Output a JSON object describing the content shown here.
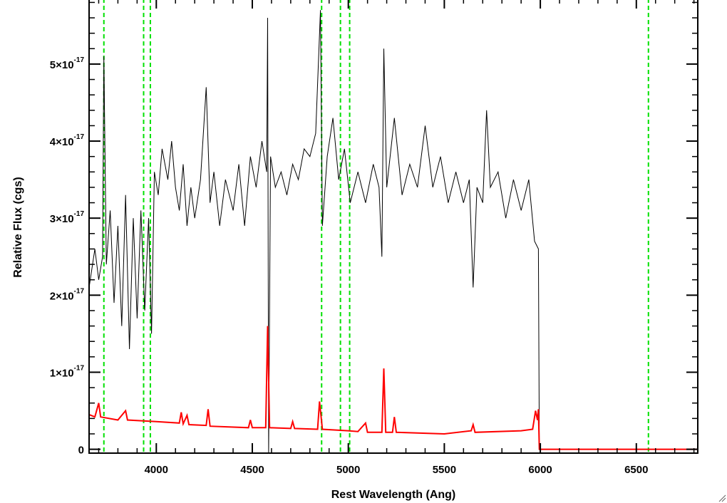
{
  "chart_data": {
    "type": "line",
    "title": "",
    "xlabel": "Rest Wavelength (Ang)",
    "ylabel": "Relative Flux (cgs)",
    "xlim": [
      3650,
      6820
    ],
    "ylim": [
      -5e-19,
      5.85e-17
    ],
    "x_ticks": [
      {
        "value": 4000,
        "label": "4000"
      },
      {
        "value": 4500,
        "label": "4500"
      },
      {
        "value": 5000,
        "label": "5000"
      },
      {
        "value": 5500,
        "label": "5500"
      },
      {
        "value": 6000,
        "label": "6000"
      },
      {
        "value": 6500,
        "label": "6500"
      }
    ],
    "y_ticks": [
      {
        "value": 0,
        "label": "0",
        "exp": ""
      },
      {
        "value": 1e-17,
        "label": "1×10",
        "exp": "-17"
      },
      {
        "value": 2e-17,
        "label": "2×10",
        "exp": "-17"
      },
      {
        "value": 3e-17,
        "label": "3×10",
        "exp": "-17"
      },
      {
        "value": 4e-17,
        "label": "4×10",
        "exp": "-17"
      },
      {
        "value": 5e-17,
        "label": "5×10",
        "exp": "-17"
      }
    ],
    "grid": false,
    "legend": "none",
    "reference_lines_x": [
      3727,
      3934,
      3969,
      4861,
      4959,
      5007,
      6563
    ],
    "series": [
      {
        "color": "#000000",
        "points": [
          [
            3650,
            2.1e-17
          ],
          [
            3680,
            2.6e-17
          ],
          [
            3700,
            2.2e-17
          ],
          [
            3720,
            2.5e-17
          ],
          [
            3727,
            5.1e-17
          ],
          [
            3740,
            2.4e-17
          ],
          [
            3760,
            3.1e-17
          ],
          [
            3780,
            1.9e-17
          ],
          [
            3800,
            2.9e-17
          ],
          [
            3820,
            1.6e-17
          ],
          [
            3840,
            3.3e-17
          ],
          [
            3860,
            1.3e-17
          ],
          [
            3880,
            3e-17
          ],
          [
            3900,
            1.7e-17
          ],
          [
            3920,
            3.1e-17
          ],
          [
            3940,
            1.8e-17
          ],
          [
            3960,
            3e-17
          ],
          [
            3975,
            1.5e-17
          ],
          [
            3990,
            3.6e-17
          ],
          [
            4010,
            3.3e-17
          ],
          [
            4030,
            3.9e-17
          ],
          [
            4060,
            3.5e-17
          ],
          [
            4080,
            4e-17
          ],
          [
            4100,
            3.4e-17
          ],
          [
            4120,
            3.1e-17
          ],
          [
            4140,
            3.7e-17
          ],
          [
            4160,
            2.9e-17
          ],
          [
            4180,
            3.4e-17
          ],
          [
            4200,
            3e-17
          ],
          [
            4230,
            3.5e-17
          ],
          [
            4260,
            4.7e-17
          ],
          [
            4280,
            3.2e-17
          ],
          [
            4300,
            3.6e-17
          ],
          [
            4330,
            2.9e-17
          ],
          [
            4360,
            3.5e-17
          ],
          [
            4400,
            3.1e-17
          ],
          [
            4430,
            3.7e-17
          ],
          [
            4460,
            2.9e-17
          ],
          [
            4490,
            3.8e-17
          ],
          [
            4520,
            3.4e-17
          ],
          [
            4550,
            4e-17
          ],
          [
            4575,
            3.6e-17
          ],
          [
            4580,
            5.6e-17
          ],
          [
            4585,
            -5e-19
          ],
          [
            4595,
            3.8e-17
          ],
          [
            4620,
            3.4e-17
          ],
          [
            4650,
            3.6e-17
          ],
          [
            4680,
            3.3e-17
          ],
          [
            4710,
            3.7e-17
          ],
          [
            4740,
            3.5e-17
          ],
          [
            4770,
            3.9e-17
          ],
          [
            4800,
            3.8e-17
          ],
          [
            4830,
            4.1e-17
          ],
          [
            4855,
            5.7e-17
          ],
          [
            4865,
            2.9e-17
          ],
          [
            4890,
            3.8e-17
          ],
          [
            4920,
            4.3e-17
          ],
          [
            4950,
            3.5e-17
          ],
          [
            4980,
            3.9e-17
          ],
          [
            5010,
            3.2e-17
          ],
          [
            5050,
            3.6e-17
          ],
          [
            5090,
            3.2e-17
          ],
          [
            5130,
            3.7e-17
          ],
          [
            5160,
            3.4e-17
          ],
          [
            5175,
            2.5e-17
          ],
          [
            5185,
            5.2e-17
          ],
          [
            5200,
            3.4e-17
          ],
          [
            5240,
            4.3e-17
          ],
          [
            5280,
            3.3e-17
          ],
          [
            5320,
            3.7e-17
          ],
          [
            5360,
            3.4e-17
          ],
          [
            5400,
            4.2e-17
          ],
          [
            5440,
            3.4e-17
          ],
          [
            5480,
            3.8e-17
          ],
          [
            5520,
            3.2e-17
          ],
          [
            5560,
            3.6e-17
          ],
          [
            5600,
            3.2e-17
          ],
          [
            5630,
            3.5e-17
          ],
          [
            5650,
            2.1e-17
          ],
          [
            5670,
            3.4e-17
          ],
          [
            5700,
            3.2e-17
          ],
          [
            5720,
            4.4e-17
          ],
          [
            5740,
            3.4e-17
          ],
          [
            5780,
            3.6e-17
          ],
          [
            5820,
            3e-17
          ],
          [
            5860,
            3.5e-17
          ],
          [
            5900,
            3.1e-17
          ],
          [
            5940,
            3.5e-17
          ],
          [
            5970,
            2.7e-17
          ],
          [
            5990,
            2.6e-17
          ],
          [
            5995,
            0.0
          ],
          [
            6820,
            0.0
          ]
        ]
      },
      {
        "color": "#ff0000",
        "points": [
          [
            3650,
            4.5e-18
          ],
          [
            3680,
            4.2e-18
          ],
          [
            3700,
            6e-18
          ],
          [
            3710,
            4.2e-18
          ],
          [
            3800,
            3.8e-18
          ],
          [
            3840,
            5e-18
          ],
          [
            3850,
            3.8e-18
          ],
          [
            4000,
            3.6e-18
          ],
          [
            4120,
            3.4e-18
          ],
          [
            4130,
            4.8e-18
          ],
          [
            4140,
            3.3e-18
          ],
          [
            4160,
            4.4e-18
          ],
          [
            4170,
            3.2e-18
          ],
          [
            4260,
            3.1e-18
          ],
          [
            4270,
            5.2e-18
          ],
          [
            4280,
            3e-18
          ],
          [
            4480,
            2.8e-18
          ],
          [
            4490,
            3.8e-18
          ],
          [
            4500,
            2.8e-18
          ],
          [
            4570,
            2.8e-18
          ],
          [
            4580,
            1.6e-17
          ],
          [
            4590,
            2.8e-18
          ],
          [
            4700,
            2.7e-18
          ],
          [
            4710,
            3.6e-18
          ],
          [
            4720,
            2.7e-18
          ],
          [
            4840,
            2.6e-18
          ],
          [
            4850,
            6.2e-18
          ],
          [
            4865,
            2.6e-18
          ],
          [
            5000,
            2.4e-18
          ],
          [
            5050,
            2.3e-18
          ],
          [
            5090,
            3.4e-18
          ],
          [
            5100,
            2.2e-18
          ],
          [
            5175,
            2.2e-18
          ],
          [
            5185,
            1.05e-17
          ],
          [
            5195,
            2.2e-18
          ],
          [
            5230,
            2.2e-18
          ],
          [
            5240,
            4.2e-18
          ],
          [
            5250,
            2.2e-18
          ],
          [
            5500,
            2e-18
          ],
          [
            5640,
            2.4e-18
          ],
          [
            5650,
            3.2e-18
          ],
          [
            5660,
            2.2e-18
          ],
          [
            5900,
            2.4e-18
          ],
          [
            5960,
            2.6e-18
          ],
          [
            5975,
            5e-18
          ],
          [
            5985,
            3.8e-18
          ],
          [
            5990,
            5.2e-18
          ],
          [
            5995,
            0.0
          ],
          [
            6820,
            0.0
          ]
        ]
      }
    ]
  }
}
